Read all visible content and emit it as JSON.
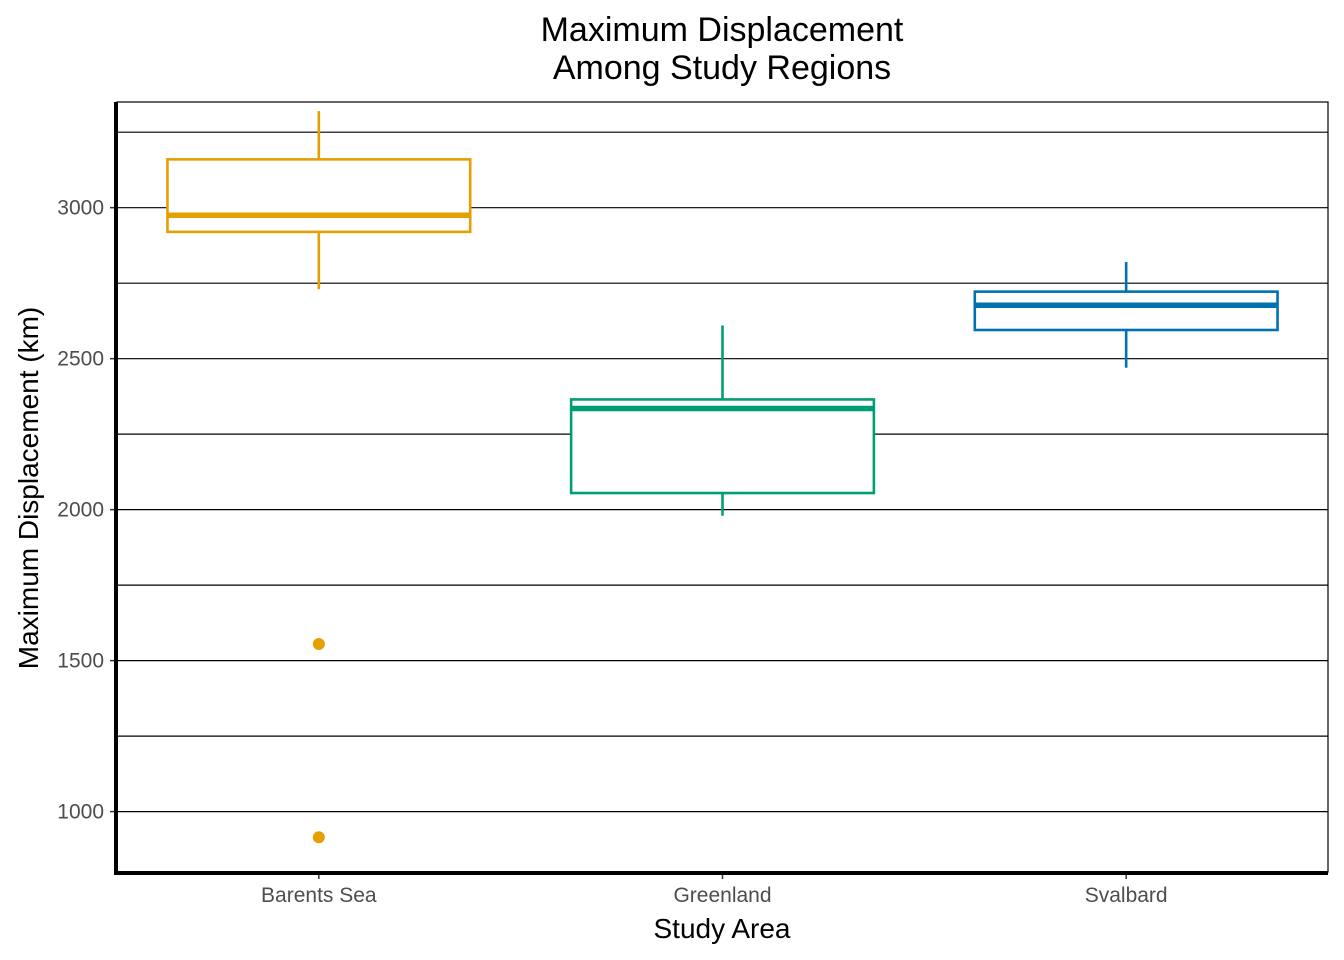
{
  "chart_data": {
    "type": "boxplot",
    "title": [
      "Maximum Displacement",
      "Among Study Regions"
    ],
    "xlabel": "Study Area",
    "ylabel": "Maximum Displacement (km)",
    "ylim": [
      800,
      3350
    ],
    "y_major_ticks": [
      1000,
      1500,
      2000,
      2500,
      3000
    ],
    "y_minor_gridlines": [
      1250,
      1750,
      2250,
      2750,
      3250
    ],
    "grid": "horizontal",
    "categories": [
      "Barents Sea",
      "Greenland",
      "Svalbard"
    ],
    "boxes": [
      {
        "category": "Barents Sea",
        "color": "#E69F00",
        "whisker_low": 2730,
        "q1": 2920,
        "median": 2975,
        "q3": 3160,
        "whisker_high": 3320,
        "outliers": [
          1555,
          915
        ]
      },
      {
        "category": "Greenland",
        "color": "#009E73",
        "whisker_low": 1980,
        "q1": 2055,
        "median": 2335,
        "q3": 2365,
        "whisker_high": 2610,
        "outliers": []
      },
      {
        "category": "Svalbard",
        "color": "#0072B2",
        "whisker_low": 2470,
        "q1": 2595,
        "median": 2677,
        "q3": 2722,
        "whisker_high": 2820,
        "outliers": []
      }
    ]
  }
}
